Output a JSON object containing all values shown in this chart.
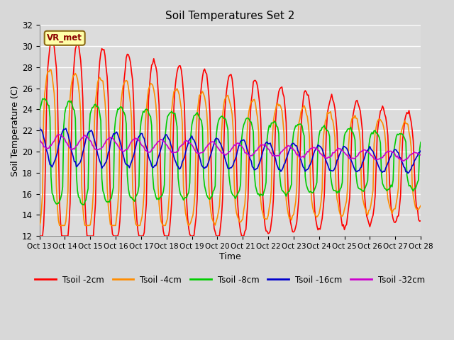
{
  "title": "Soil Temperatures Set 2",
  "xlabel": "Time",
  "ylabel": "Soil Temperature (C)",
  "ylim": [
    12,
    32
  ],
  "xlim": [
    0,
    375
  ],
  "plot_bg_color": "#dcdcdc",
  "fig_bg_color": "#d8d8d8",
  "grid_color": "#ffffff",
  "annotation_text": "VR_met",
  "annotation_box_color": "#ffffaa",
  "annotation_box_edge": "#8b6914",
  "annotation_text_color": "#8b0000",
  "x_tick_labels": [
    "Oct 13",
    "Oct 14",
    "Oct 15",
    "Oct 16",
    "Oct 17",
    "Oct 18",
    "Oct 19",
    "Oct 20",
    "Oct 21",
    "Oct 22",
    "Oct 23",
    "Oct 24",
    "Oct 25",
    "Oct 26",
    "Oct 27",
    "Oct 28"
  ],
  "x_tick_positions": [
    0,
    25,
    50,
    75,
    100,
    125,
    150,
    175,
    200,
    225,
    250,
    275,
    300,
    325,
    350,
    375
  ],
  "series": {
    "Tsoil -2cm": {
      "color": "#ff0000",
      "lw": 1.2
    },
    "Tsoil -4cm": {
      "color": "#ff8c00",
      "lw": 1.2
    },
    "Tsoil -8cm": {
      "color": "#00cc00",
      "lw": 1.2
    },
    "Tsoil -16cm": {
      "color": "#0000cc",
      "lw": 1.2
    },
    "Tsoil -32cm": {
      "color": "#cc00cc",
      "lw": 1.2
    }
  }
}
